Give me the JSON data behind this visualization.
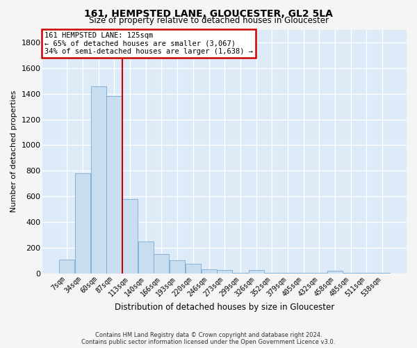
{
  "title": "161, HEMPSTED LANE, GLOUCESTER, GL2 5LA",
  "subtitle": "Size of property relative to detached houses in Gloucester",
  "xlabel": "Distribution of detached houses by size in Gloucester",
  "ylabel": "Number of detached properties",
  "bar_color": "#c8ddf0",
  "bar_edge_color": "#7aaacf",
  "categories": [
    "7sqm",
    "34sqm",
    "60sqm",
    "87sqm",
    "113sqm",
    "140sqm",
    "166sqm",
    "193sqm",
    "220sqm",
    "246sqm",
    "273sqm",
    "299sqm",
    "326sqm",
    "352sqm",
    "379sqm",
    "405sqm",
    "432sqm",
    "458sqm",
    "485sqm",
    "511sqm",
    "538sqm"
  ],
  "values": [
    110,
    780,
    1460,
    1380,
    580,
    250,
    150,
    100,
    75,
    30,
    25,
    5,
    25,
    5,
    5,
    5,
    5,
    20,
    5,
    5,
    5
  ],
  "ylim": [
    0,
    1900
  ],
  "yticks": [
    0,
    200,
    400,
    600,
    800,
    1000,
    1200,
    1400,
    1600,
    1800
  ],
  "vline_x": 3.5,
  "annotation_title": "161 HEMPSTED LANE: 125sqm",
  "annotation_line1": "← 65% of detached houses are smaller (3,067)",
  "annotation_line2": "34% of semi-detached houses are larger (1,638) →",
  "annotation_box_facecolor": "#ffffff",
  "annotation_box_edgecolor": "#cc0000",
  "vline_color": "#cc0000",
  "footnote1": "Contains HM Land Registry data © Crown copyright and database right 2024.",
  "footnote2": "Contains public sector information licensed under the Open Government Licence v3.0.",
  "plot_bg_color": "#ddeaf7",
  "fig_bg_color": "#f5f5f5",
  "grid_color": "#ffffff"
}
